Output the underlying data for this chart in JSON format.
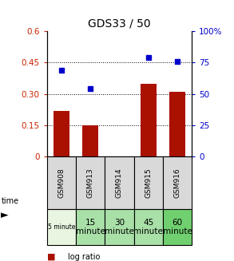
{
  "title": "GDS33 / 50",
  "categories": [
    "GSM908",
    "GSM913",
    "GSM914",
    "GSM915",
    "GSM916"
  ],
  "time_labels_line1": [
    "5 minute",
    "15",
    "30",
    "45",
    "60"
  ],
  "time_labels_line2": [
    "",
    "minute",
    "minute",
    "minute",
    "minute"
  ],
  "log_ratio": [
    0.22,
    0.15,
    0.0,
    0.35,
    0.31
  ],
  "percentile_rank": [
    69,
    54,
    0,
    79,
    76
  ],
  "bar_color": "#aa1100",
  "dot_color": "#0000cc",
  "left_ylim": [
    0,
    0.6
  ],
  "right_ylim": [
    0,
    100
  ],
  "left_yticks": [
    0,
    0.15,
    0.3,
    0.45,
    0.6
  ],
  "right_yticks": [
    0,
    25,
    50,
    75,
    100
  ],
  "left_ytick_labels": [
    "0",
    "0.15",
    "0.30",
    "0.45",
    "0.6"
  ],
  "right_ytick_labels": [
    "0",
    "25",
    "50",
    "75",
    "100%"
  ],
  "hline_positions": [
    0.15,
    0.3,
    0.45
  ],
  "cell_colors_row1": [
    "#d9d9d9",
    "#d9d9d9",
    "#d9d9d9",
    "#d9d9d9",
    "#d9d9d9"
  ],
  "cell_colors_row2": [
    "#e8f5e0",
    "#a8e0a8",
    "#a8e0a8",
    "#a8e0a8",
    "#70d070"
  ],
  "bg_color": "#ffffff"
}
